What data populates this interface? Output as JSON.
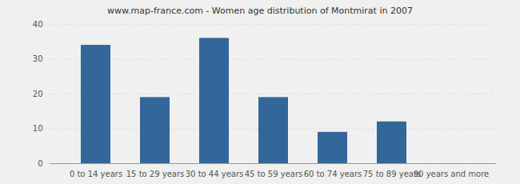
{
  "chart_data": {
    "type": "bar",
    "title": "www.map-france.com - Women age distribution of Montmirat in 2007",
    "categories": [
      "0 to 14 years",
      "15 to 29 years",
      "30 to 44 years",
      "45 to 59 years",
      "60 to 74 years",
      "75 to 89 years",
      "90 years and more"
    ],
    "values": [
      34,
      19,
      36,
      19,
      9,
      12,
      0
    ],
    "color": "#336699",
    "ylim": [
      0,
      40
    ],
    "yticks": [
      0,
      10,
      20,
      30,
      40
    ],
    "grid": true
  }
}
